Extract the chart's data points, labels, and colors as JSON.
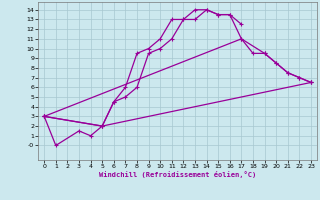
{
  "xlabel": "Windchill (Refroidissement éolien,°C)",
  "xlim": [
    -0.5,
    23.5
  ],
  "ylim": [
    -1.5,
    14.8
  ],
  "xticks": [
    0,
    1,
    2,
    3,
    4,
    5,
    6,
    7,
    8,
    9,
    10,
    11,
    12,
    13,
    14,
    15,
    16,
    17,
    18,
    19,
    20,
    21,
    22,
    23
  ],
  "yticks": [
    0,
    1,
    2,
    3,
    4,
    5,
    6,
    7,
    8,
    9,
    10,
    11,
    12,
    13,
    14
  ],
  "ytick_labels": [
    "-0",
    "1",
    "2",
    "3",
    "4",
    "5",
    "6",
    "7",
    "8",
    "9",
    "10",
    "11",
    "12",
    "13",
    "14"
  ],
  "bg_color": "#cce8ee",
  "line_color": "#990099",
  "grid_color": "#a8c8d0",
  "curve1_x": [
    0,
    1,
    3,
    4,
    5,
    6,
    7,
    8,
    9,
    10,
    11,
    12,
    13,
    14,
    15,
    16,
    17
  ],
  "curve1_y": [
    3,
    0,
    1.5,
    1.0,
    2.0,
    4.5,
    6.0,
    9.5,
    10.0,
    11.0,
    13.0,
    13.0,
    14.0,
    14.0,
    13.5,
    13.5,
    12.5
  ],
  "curve2_x": [
    0,
    5,
    6,
    7,
    8,
    9,
    10,
    11,
    12,
    13,
    14,
    15,
    16,
    17,
    18,
    19,
    20,
    21,
    22,
    23
  ],
  "curve2_y": [
    3,
    2.0,
    4.5,
    5.0,
    6.0,
    9.5,
    10.0,
    11.0,
    13.0,
    13.0,
    14.0,
    13.5,
    13.5,
    11.0,
    9.5,
    9.5,
    8.5,
    7.5,
    7.0,
    6.5
  ],
  "curve3_x": [
    0,
    5,
    23
  ],
  "curve3_y": [
    3,
    2.0,
    6.5
  ],
  "curve4_x": [
    0,
    17,
    19,
    20,
    21,
    22,
    23
  ],
  "curve4_y": [
    3,
    11.0,
    9.5,
    8.5,
    7.5,
    7.0,
    6.5
  ]
}
